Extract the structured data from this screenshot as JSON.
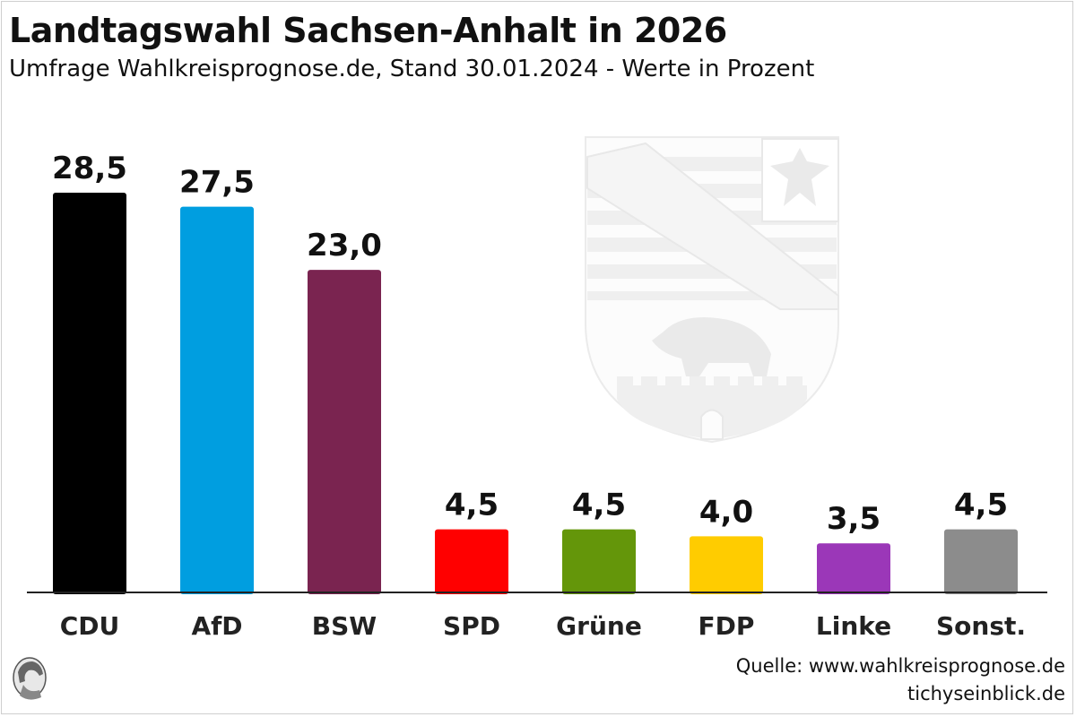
{
  "header": {
    "title": "Landtagswahl Sachsen-Anhalt in 2026",
    "subtitle": "Umfrage Wahlkreisprognose.de, Stand 30.01.2024 - Werte in Prozent"
  },
  "footer": {
    "source": "Quelle: www.wahlkreisprognose.de",
    "site": "tichyseinblick.de"
  },
  "chart_data": {
    "type": "bar",
    "title": "Landtagswahl Sachsen-Anhalt in 2026",
    "subtitle": "Umfrage Wahlkreisprognose.de, Stand 30.01.2024 - Werte in Prozent",
    "categories": [
      "CDU",
      "AfD",
      "BSW",
      "SPD",
      "Grüne",
      "FDP",
      "Linke",
      "Sonst."
    ],
    "values": [
      28.5,
      27.5,
      23.0,
      4.5,
      4.5,
      4.0,
      3.5,
      4.5
    ],
    "value_labels": [
      "28,5",
      "27,5",
      "23,0",
      "4,5",
      "4,5",
      "4,0",
      "3,5",
      "4,5"
    ],
    "colors": [
      "#000000",
      "#009ee0",
      "#7a2450",
      "#ff0000",
      "#64960a",
      "#ffcc00",
      "#9b37b8",
      "#8c8c8c"
    ],
    "ylim": [
      0,
      30
    ],
    "grid": false,
    "legend": "none",
    "xlabel": "",
    "ylabel": ""
  }
}
